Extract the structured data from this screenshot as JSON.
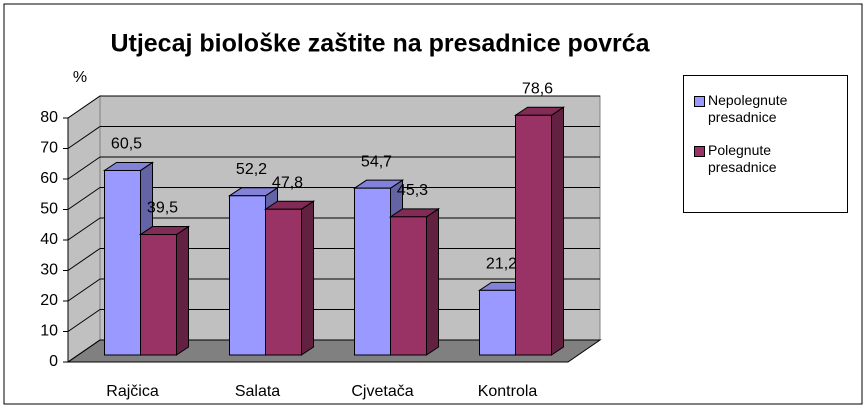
{
  "chart_data": {
    "type": "bar3d",
    "title": "Utjecaj biološke zaštite na presadnice povrća",
    "y_label": "%",
    "categories": [
      "Rajčica",
      "Salata",
      "Cjvetača",
      "Kontrola"
    ],
    "series": [
      {
        "name": "Nepolegnute presadnice",
        "color": "#9999ff",
        "values": [
          60.5,
          52.2,
          54.7,
          21.2
        ],
        "value_labels": [
          "60,5",
          "52,2",
          "54,7",
          "21,2"
        ]
      },
      {
        "name": "Polegnute presadnice",
        "color": "#993366",
        "values": [
          39.5,
          47.8,
          45.3,
          78.6
        ],
        "value_labels": [
          "39,5",
          "47,8",
          "45,3",
          "78,6"
        ]
      }
    ],
    "ylim": [
      0,
      80
    ],
    "yticks": [
      0,
      10,
      20,
      30,
      40,
      50,
      60,
      70,
      80
    ],
    "grid": true,
    "legend": "right"
  }
}
